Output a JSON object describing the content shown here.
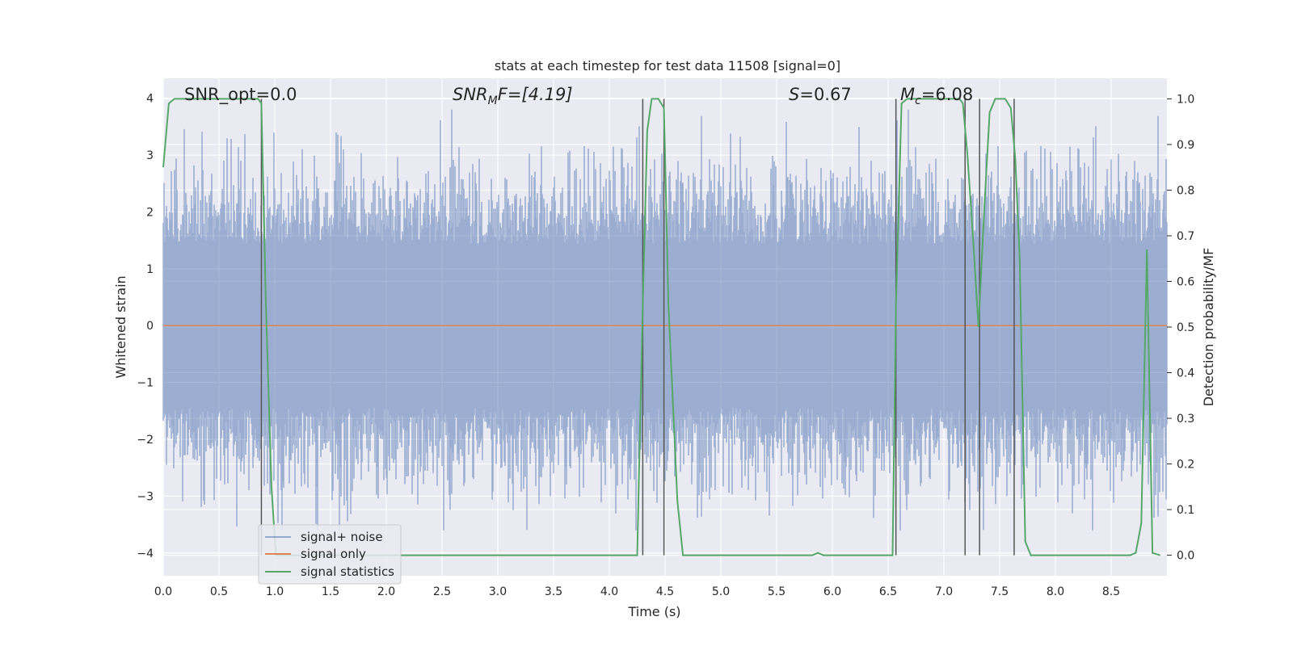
{
  "chart_data": {
    "type": "line",
    "title": "stats at each timestep for test data 11508 [signal=0]",
    "xlabel": "Time (s)",
    "ylabel": "Whitened strain",
    "y2label": "Detection probability/MF",
    "xlim": [
      0.0,
      9.0
    ],
    "ylim": [
      -4.4,
      4.35
    ],
    "y2lim": [
      -0.045,
      1.045
    ],
    "x_ticks": [
      "0.0",
      "0.5",
      "1.0",
      "1.5",
      "2.0",
      "2.5",
      "3.0",
      "3.5",
      "4.0",
      "4.5",
      "5.0",
      "5.5",
      "6.0",
      "6.5",
      "7.0",
      "7.5",
      "8.0",
      "8.5"
    ],
    "x_tick_values": [
      0.0,
      0.5,
      1.0,
      1.5,
      2.0,
      2.5,
      3.0,
      3.5,
      4.0,
      4.5,
      5.0,
      5.5,
      6.0,
      6.5,
      7.0,
      7.5,
      8.0,
      8.5
    ],
    "y_ticks": [
      "−4",
      "−3",
      "−2",
      "−1",
      "0",
      "1",
      "2",
      "3",
      "4"
    ],
    "y_tick_values": [
      -4,
      -3,
      -2,
      -1,
      0,
      1,
      2,
      3,
      4
    ],
    "y2_ticks": [
      "0.0",
      "0.1",
      "0.2",
      "0.3",
      "0.4",
      "0.5",
      "0.6",
      "0.7",
      "0.8",
      "0.9",
      "1.0"
    ],
    "y2_tick_values": [
      0.0,
      0.1,
      0.2,
      0.3,
      0.4,
      0.5,
      0.6,
      0.7,
      0.8,
      0.9,
      1.0
    ],
    "grid": true,
    "legend_position": "lower-left",
    "annotations": {
      "snr_opt": "SNR_opt=0.0",
      "snr_mf_symbol": "SNR",
      "snr_mf_sub": "M",
      "snr_mf_rest": "F=[4.19]",
      "s_symbol": "S",
      "s_rest": "=0.67",
      "mc_symbol": "M",
      "mc_sub": "c",
      "mc_rest": "=6.08"
    },
    "series": [
      {
        "name": "signal+ noise",
        "color": "#4c72b0",
        "opacity": 0.5,
        "kind": "noise",
        "typical_amplitude": 1.6,
        "peak_range": [
          -3.6,
          3.8
        ]
      },
      {
        "name": "signal only",
        "color": "#dd8452",
        "kind": "constant",
        "value": 0.0
      },
      {
        "name": "signal statistics",
        "color": "#55a868",
        "axis": "right",
        "x": [
          0.0,
          0.05,
          0.1,
          0.15,
          0.85,
          0.88,
          0.92,
          0.97,
          1.01,
          4.25,
          4.3,
          4.34,
          4.38,
          4.44,
          4.49,
          4.53,
          4.61,
          4.66,
          5.82,
          5.87,
          5.92,
          5.96,
          6.54,
          6.57,
          6.62,
          6.67,
          7.14,
          7.17,
          7.21,
          7.26,
          7.31,
          7.36,
          7.41,
          7.46,
          7.5,
          7.55,
          7.6,
          7.64,
          7.68,
          7.73,
          7.78,
          7.83,
          8.67,
          8.72,
          8.77,
          8.82,
          8.87,
          8.94
        ],
        "values": [
          0.85,
          0.99,
          1.0,
          1.0,
          1.0,
          0.99,
          0.55,
          0.15,
          0.0,
          0.0,
          0.55,
          0.93,
          1.0,
          1.0,
          0.98,
          0.55,
          0.12,
          0.0,
          0.0,
          0.005,
          0.0,
          0.0,
          0.0,
          0.55,
          0.99,
          1.0,
          1.0,
          0.99,
          0.88,
          0.7,
          0.5,
          0.75,
          0.97,
          1.0,
          1.0,
          1.0,
          0.98,
          0.87,
          0.65,
          0.03,
          0.0,
          0.0,
          0.0,
          0.005,
          0.07,
          0.67,
          0.005,
          0.0
        ]
      }
    ],
    "vertical_lines_x": [
      0.88,
      4.3,
      4.49,
      6.57,
      7.19,
      7.32,
      7.63
    ]
  }
}
